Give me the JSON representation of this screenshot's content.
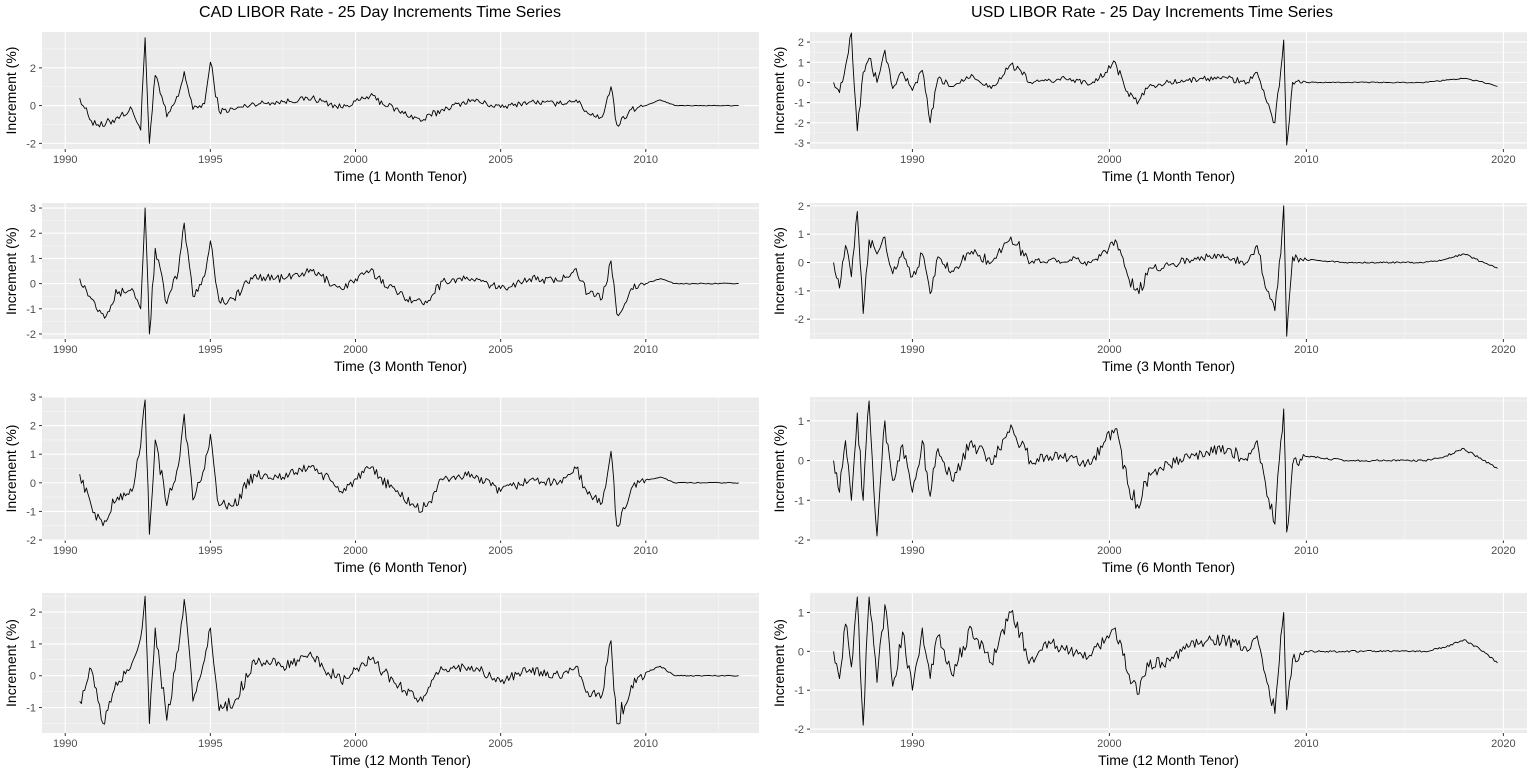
{
  "titles": {
    "left": "CAD LIBOR Rate - 25 Day Increments Time Series",
    "right": "USD LIBOR Rate - 25 Day Increments Time Series"
  },
  "chart_data": [
    {
      "id": "cad-1m",
      "type": "line",
      "xlabel": "Time (1 Month Tenor)",
      "ylabel": "Increment (%)",
      "xlim": [
        1989.2,
        2013.9
      ],
      "ylim": [
        -2.3,
        3.9
      ],
      "xticks": [
        1990,
        1995,
        2000,
        2005,
        2010
      ],
      "yticks": [
        -2,
        0,
        2
      ],
      "series": [
        {
          "x": [
            1990.5,
            1990.9,
            1991.3,
            1991.8,
            1992.3,
            1992.6,
            1992.75,
            1992.9,
            1993.1,
            1993.5,
            1993.9,
            1994.1,
            1994.4,
            1994.8,
            1995.0,
            1995.3,
            1995.8,
            1996.5,
            1997.5,
            1998.5,
            1999.5,
            2000.5,
            2001.5,
            2002.3,
            2003.0,
            2004.0,
            2005.0,
            2006.0,
            2007.0,
            2007.6,
            2008.0,
            2008.5,
            2008.8,
            2009.0,
            2009.5,
            2010.0,
            2010.5,
            2011.0,
            2012.0,
            2013.2
          ],
          "y": [
            0.4,
            -0.8,
            -1.1,
            -0.6,
            -0.2,
            -1.3,
            3.6,
            -2.0,
            1.6,
            -0.6,
            0.5,
            1.8,
            -0.2,
            0.1,
            2.3,
            -0.3,
            -0.2,
            0.1,
            0.2,
            0.4,
            -0.1,
            0.5,
            -0.3,
            -0.8,
            -0.2,
            0.3,
            -0.1,
            0.2,
            0.1,
            0.3,
            -0.4,
            -0.6,
            1.0,
            -1.0,
            -0.2,
            0.0,
            0.3,
            0.0,
            0.0,
            0.0
          ]
        }
      ]
    },
    {
      "id": "cad-3m",
      "type": "line",
      "xlabel": "Time (3 Month Tenor)",
      "ylabel": "Increment (%)",
      "xlim": [
        1989.2,
        2013.9
      ],
      "ylim": [
        -2.2,
        3.2
      ],
      "xticks": [
        1990,
        1995,
        2000,
        2005,
        2010
      ],
      "yticks": [
        -2,
        -1,
        0,
        1,
        2,
        3
      ],
      "series": [
        {
          "x": [
            1990.5,
            1990.9,
            1991.3,
            1991.8,
            1992.3,
            1992.6,
            1992.75,
            1992.9,
            1993.1,
            1993.5,
            1993.9,
            1994.1,
            1994.4,
            1994.8,
            1995.0,
            1995.3,
            1995.8,
            1996.5,
            1997.5,
            1998.5,
            1999.5,
            2000.5,
            2001.5,
            2002.3,
            2003.0,
            2004.0,
            2005.0,
            2006.0,
            2007.0,
            2007.6,
            2008.0,
            2008.5,
            2008.8,
            2009.0,
            2009.5,
            2010.0,
            2010.5,
            2011.0,
            2012.0,
            2013.2
          ],
          "y": [
            0.2,
            -0.6,
            -1.2,
            -0.4,
            -0.2,
            -1.0,
            3.0,
            -2.0,
            1.4,
            -0.8,
            0.5,
            2.4,
            -0.5,
            0.3,
            1.7,
            -0.7,
            -0.6,
            0.3,
            0.2,
            0.5,
            -0.2,
            0.5,
            -0.4,
            -0.8,
            0.1,
            0.2,
            -0.2,
            0.2,
            0.1,
            0.6,
            -0.4,
            -0.6,
            0.9,
            -1.2,
            -0.2,
            0.0,
            0.2,
            0.0,
            0.0,
            0.0
          ]
        }
      ]
    },
    {
      "id": "cad-6m",
      "type": "line",
      "xlabel": "Time (6 Month Tenor)",
      "ylabel": "Increment (%)",
      "xlim": [
        1989.2,
        2013.9
      ],
      "ylim": [
        -2.0,
        3.0
      ],
      "xticks": [
        1990,
        1995,
        2000,
        2005,
        2010
      ],
      "yticks": [
        -2,
        -1,
        0,
        1,
        2,
        3
      ],
      "series": [
        {
          "x": [
            1990.5,
            1990.9,
            1991.3,
            1991.8,
            1992.3,
            1992.6,
            1992.75,
            1992.9,
            1993.1,
            1993.5,
            1993.9,
            1994.1,
            1994.4,
            1994.8,
            1995.0,
            1995.3,
            1995.8,
            1996.5,
            1997.5,
            1998.5,
            1999.5,
            2000.5,
            2001.5,
            2002.3,
            2003.0,
            2004.0,
            2005.0,
            2006.0,
            2007.0,
            2007.6,
            2008.0,
            2008.5,
            2008.8,
            2009.0,
            2009.5,
            2010.0,
            2010.5,
            2011.0,
            2012.0,
            2013.2
          ],
          "y": [
            0.3,
            -0.8,
            -1.5,
            -0.5,
            -0.3,
            1.3,
            2.9,
            -1.8,
            1.5,
            -0.8,
            0.6,
            2.4,
            -0.6,
            0.5,
            1.7,
            -0.8,
            -0.8,
            0.3,
            0.2,
            0.6,
            -0.3,
            0.5,
            -0.4,
            -1.0,
            0.1,
            0.3,
            -0.3,
            0.1,
            0.0,
            0.5,
            -0.4,
            -0.7,
            1.1,
            -1.5,
            -0.2,
            0.1,
            0.2,
            0.0,
            0.0,
            0.0
          ]
        }
      ]
    },
    {
      "id": "cad-12m",
      "type": "line",
      "xlabel": "Time (12 Month Tenor)",
      "ylabel": "Increment (%)",
      "xlim": [
        1989.2,
        2013.9
      ],
      "ylim": [
        -1.8,
        2.6
      ],
      "xticks": [
        1990,
        1995,
        2000,
        2005,
        2010
      ],
      "yticks": [
        -1,
        0,
        1,
        2
      ],
      "series": [
        {
          "x": [
            1990.5,
            1990.9,
            1991.3,
            1991.8,
            1992.3,
            1992.6,
            1992.75,
            1992.9,
            1993.1,
            1993.5,
            1993.9,
            1994.1,
            1994.4,
            1994.8,
            1995.0,
            1995.3,
            1995.8,
            1996.5,
            1997.5,
            1998.5,
            1999.5,
            2000.5,
            2001.5,
            2002.3,
            2003.0,
            2004.0,
            2005.0,
            2006.0,
            2007.0,
            2007.6,
            2008.0,
            2008.5,
            2008.8,
            2009.0,
            2009.5,
            2010.0,
            2010.5,
            2011.0,
            2012.0,
            2013.2
          ],
          "y": [
            -0.8,
            0.2,
            -1.5,
            -0.3,
            0.4,
            1.2,
            2.5,
            -1.5,
            1.5,
            -1.4,
            0.8,
            2.4,
            -0.8,
            0.5,
            1.5,
            -1.1,
            -0.9,
            0.5,
            0.3,
            0.6,
            -0.2,
            0.5,
            -0.3,
            -0.8,
            0.2,
            0.3,
            -0.2,
            0.2,
            0.0,
            0.3,
            -0.5,
            -0.6,
            1.1,
            -1.5,
            -0.3,
            0.1,
            0.3,
            0.0,
            0.0,
            0.0
          ]
        }
      ]
    },
    {
      "id": "usd-1m",
      "type": "line",
      "xlabel": "Time (1 Month Tenor)",
      "ylabel": "Increment (%)",
      "xlim": [
        1984.8,
        2021.2
      ],
      "ylim": [
        -3.3,
        2.5
      ],
      "xticks": [
        1990,
        2000,
        2010,
        2020
      ],
      "yticks": [
        -3,
        -2,
        -1,
        0,
        1,
        2
      ],
      "series": [
        {
          "x": [
            1986.0,
            1986.3,
            1986.6,
            1986.9,
            1987.2,
            1987.5,
            1987.8,
            1988.2,
            1988.6,
            1989.0,
            1989.5,
            1990.0,
            1990.5,
            1990.9,
            1991.3,
            1992.0,
            1993.0,
            1994.0,
            1995.0,
            1996.0,
            1997.0,
            1998.0,
            1999.0,
            1999.8,
            2000.3,
            2001.0,
            2001.5,
            2002.0,
            2003.0,
            2004.0,
            2005.0,
            2006.0,
            2007.0,
            2007.5,
            2008.0,
            2008.4,
            2008.7,
            2008.85,
            2009.0,
            2009.3,
            2010.0,
            2012.0,
            2014.0,
            2016.0,
            2017.0,
            2018.0,
            2019.0,
            2019.7
          ],
          "y": [
            0.0,
            -0.5,
            0.8,
            2.5,
            -2.4,
            0.5,
            1.2,
            0.0,
            1.6,
            -0.3,
            0.5,
            -0.4,
            0.6,
            -2.0,
            0.2,
            -0.2,
            0.4,
            -0.3,
            0.9,
            0.0,
            0.1,
            0.2,
            -0.1,
            0.5,
            1.0,
            -0.7,
            -0.9,
            -0.2,
            0.0,
            0.1,
            0.2,
            0.2,
            0.0,
            0.5,
            -1.0,
            -2.0,
            0.6,
            2.1,
            -3.1,
            0.0,
            0.0,
            0.0,
            0.0,
            0.0,
            0.1,
            0.2,
            0.0,
            -0.2
          ]
        }
      ]
    },
    {
      "id": "usd-3m",
      "type": "line",
      "xlabel": "Time (3 Month Tenor)",
      "ylabel": "Increment (%)",
      "xlim": [
        1984.8,
        2021.2
      ],
      "ylim": [
        -2.7,
        2.1
      ],
      "xticks": [
        1990,
        2000,
        2010,
        2020
      ],
      "yticks": [
        -2,
        -1,
        0,
        1,
        2
      ],
      "series": [
        {
          "x": [
            1986.0,
            1986.3,
            1986.6,
            1986.9,
            1987.2,
            1987.5,
            1987.8,
            1988.2,
            1988.6,
            1989.0,
            1989.5,
            1990.0,
            1990.5,
            1990.9,
            1991.3,
            1992.0,
            1993.0,
            1994.0,
            1995.0,
            1996.0,
            1997.0,
            1998.0,
            1999.0,
            1999.8,
            2000.3,
            2001.0,
            2001.5,
            2002.0,
            2003.0,
            2004.0,
            2005.0,
            2006.0,
            2007.0,
            2007.5,
            2008.0,
            2008.4,
            2008.7,
            2008.85,
            2009.0,
            2009.3,
            2010.0,
            2012.0,
            2014.0,
            2016.0,
            2017.0,
            2018.0,
            2019.0,
            2019.7
          ],
          "y": [
            0.0,
            -0.9,
            0.6,
            -0.5,
            1.8,
            -1.8,
            0.8,
            0.3,
            0.9,
            -0.4,
            0.4,
            -0.5,
            0.3,
            -1.1,
            0.2,
            -0.3,
            0.4,
            0.0,
            0.9,
            0.0,
            0.1,
            0.1,
            0.0,
            0.4,
            0.8,
            -0.6,
            -1.1,
            -0.2,
            -0.1,
            0.1,
            0.2,
            0.2,
            0.0,
            0.6,
            -1.0,
            -1.7,
            0.3,
            2.0,
            -2.6,
            0.2,
            0.1,
            0.0,
            0.0,
            0.0,
            0.1,
            0.3,
            0.0,
            -0.2
          ]
        }
      ]
    },
    {
      "id": "usd-6m",
      "type": "line",
      "xlabel": "Time (6 Month Tenor)",
      "ylabel": "Increment (%)",
      "xlim": [
        1984.8,
        2021.2
      ],
      "ylim": [
        -2.0,
        1.6
      ],
      "xticks": [
        1990,
        2000,
        2010,
        2020
      ],
      "yticks": [
        -2,
        -1,
        0,
        1
      ],
      "series": [
        {
          "x": [
            1986.0,
            1986.3,
            1986.6,
            1986.9,
            1987.2,
            1987.5,
            1987.8,
            1988.2,
            1988.6,
            1989.0,
            1989.5,
            1990.0,
            1990.5,
            1990.9,
            1991.3,
            1992.0,
            1993.0,
            1994.0,
            1995.0,
            1996.0,
            1997.0,
            1998.0,
            1999.0,
            1999.8,
            2000.3,
            2001.0,
            2001.5,
            2002.0,
            2003.0,
            2004.0,
            2005.0,
            2006.0,
            2007.0,
            2007.5,
            2008.0,
            2008.4,
            2008.7,
            2008.85,
            2009.0,
            2009.3,
            2010.0,
            2012.0,
            2014.0,
            2016.0,
            2017.0,
            2018.0,
            2019.0,
            2019.7
          ],
          "y": [
            0.0,
            -0.8,
            0.5,
            -1.0,
            1.2,
            -1.0,
            1.5,
            -1.9,
            1.0,
            -0.5,
            0.4,
            -0.8,
            0.5,
            -0.9,
            0.3,
            -0.5,
            0.5,
            -0.1,
            0.9,
            0.0,
            0.1,
            0.1,
            -0.1,
            0.5,
            0.8,
            -0.7,
            -1.2,
            -0.3,
            -0.1,
            0.1,
            0.2,
            0.3,
            0.0,
            0.5,
            -0.9,
            -1.6,
            0.5,
            1.3,
            -1.8,
            -0.1,
            0.1,
            0.0,
            0.0,
            0.0,
            0.1,
            0.3,
            0.0,
            -0.2
          ]
        }
      ]
    },
    {
      "id": "usd-12m",
      "type": "line",
      "xlabel": "Time (12 Month Tenor)",
      "ylabel": "Increment (%)",
      "xlim": [
        1984.8,
        2021.2
      ],
      "ylim": [
        -2.1,
        1.5
      ],
      "xticks": [
        1990,
        2000,
        2010,
        2020
      ],
      "yticks": [
        -2,
        -1,
        0,
        1
      ],
      "series": [
        {
          "x": [
            1986.0,
            1986.3,
            1986.6,
            1986.9,
            1987.2,
            1987.5,
            1987.8,
            1988.2,
            1988.6,
            1989.0,
            1989.5,
            1990.0,
            1990.5,
            1990.9,
            1991.3,
            1992.0,
            1993.0,
            1994.0,
            1995.0,
            1996.0,
            1997.0,
            1998.0,
            1999.0,
            1999.8,
            2000.3,
            2001.0,
            2001.5,
            2002.0,
            2003.0,
            2004.0,
            2005.0,
            2006.0,
            2007.0,
            2007.5,
            2008.0,
            2008.4,
            2008.7,
            2008.85,
            2009.0,
            2009.3,
            2010.0,
            2012.0,
            2014.0,
            2016.0,
            2017.0,
            2018.0,
            2019.0,
            2019.7
          ],
          "y": [
            0.0,
            -0.7,
            0.7,
            -0.4,
            1.4,
            -1.9,
            1.4,
            -0.8,
            1.2,
            -0.9,
            0.5,
            -1.0,
            0.6,
            -0.7,
            0.4,
            -0.6,
            0.6,
            -0.3,
            1.0,
            -0.2,
            0.2,
            0.0,
            -0.1,
            0.3,
            0.6,
            -0.6,
            -1.1,
            -0.4,
            -0.2,
            0.1,
            0.3,
            0.3,
            0.0,
            0.4,
            -0.8,
            -1.6,
            0.4,
            1.0,
            -1.5,
            -0.2,
            0.0,
            0.0,
            0.0,
            0.0,
            0.1,
            0.3,
            0.0,
            -0.3
          ]
        }
      ]
    }
  ]
}
